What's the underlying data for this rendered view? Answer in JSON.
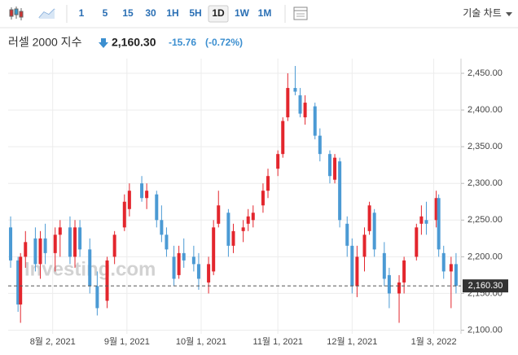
{
  "toolbar": {
    "intervals": [
      "1",
      "5",
      "15",
      "30",
      "1H",
      "5H",
      "1D",
      "1W",
      "1M"
    ],
    "active_interval": 6,
    "menu": "기술 차트"
  },
  "header": {
    "name": "러셀 2000 지수",
    "price": {
      "value": 2160.3,
      "label": "2,160.30"
    },
    "change": -15.76,
    "change_pct": {
      "value": -0.72,
      "label": "(-0.72%)"
    }
  },
  "chart_data": {
    "type": "candlestick",
    "watermark": "Investing.com",
    "up_color": "#e3262d",
    "down_color": "#4b9ad4",
    "grid": true,
    "last_price": {
      "value": 2160.3,
      "label": "2,160.30"
    },
    "xlim": [
      "2021-07-15",
      "2022-01-14"
    ],
    "xticks": [
      {
        "value": "2021-08-02",
        "label": "8월 2, 2021"
      },
      {
        "value": "2021-09-01",
        "label": "9월 1, 2021"
      },
      {
        "value": "2021-10-01",
        "label": "10월 1, 2021"
      },
      {
        "value": "2021-11-01",
        "label": "11월 1, 2021"
      },
      {
        "value": "2021-12-01",
        "label": "12월 1, 2021"
      },
      {
        "value": "2022-01-03",
        "label": "1월 3, 2022"
      }
    ],
    "ylim": [
      2095,
      2470
    ],
    "yticks": [
      {
        "value": 2100,
        "label": "2,100.00"
      },
      {
        "value": 2150,
        "label": "2,150.00"
      },
      {
        "value": 2200,
        "label": "2,200.00"
      },
      {
        "value": 2250,
        "label": "2,250.00"
      },
      {
        "value": 2300,
        "label": "2,300.00"
      },
      {
        "value": 2350,
        "label": "2,350.00"
      },
      {
        "value": 2400,
        "label": "2,400.00"
      },
      {
        "value": 2450,
        "label": "2,450.00"
      }
    ],
    "x": [
      "2021-07-16",
      "2021-07-19",
      "2021-07-20",
      "2021-07-22",
      "2021-07-26",
      "2021-07-28",
      "2021-07-30",
      "2021-08-03",
      "2021-08-05",
      "2021-08-09",
      "2021-08-11",
      "2021-08-13",
      "2021-08-17",
      "2021-08-20",
      "2021-08-24",
      "2021-08-27",
      "2021-08-31",
      "2021-09-02",
      "2021-09-07",
      "2021-09-09",
      "2021-09-13",
      "2021-09-15",
      "2021-09-17",
      "2021-09-20",
      "2021-09-22",
      "2021-09-24",
      "2021-09-28",
      "2021-09-30",
      "2021-10-04",
      "2021-10-06",
      "2021-10-08",
      "2021-10-12",
      "2021-10-14",
      "2021-10-18",
      "2021-10-20",
      "2021-10-22",
      "2021-10-26",
      "2021-10-28",
      "2021-11-01",
      "2021-11-03",
      "2021-11-05",
      "2021-11-08",
      "2021-11-10",
      "2021-11-12",
      "2021-11-16",
      "2021-11-18",
      "2021-11-22",
      "2021-11-24",
      "2021-11-26",
      "2021-11-29",
      "2021-12-01",
      "2021-12-03",
      "2021-12-06",
      "2021-12-08",
      "2021-12-10",
      "2021-12-14",
      "2021-12-16",
      "2021-12-20",
      "2021-12-22",
      "2021-12-27",
      "2021-12-29",
      "2021-12-31",
      "2022-01-04",
      "2022-01-05",
      "2022-01-07",
      "2022-01-10",
      "2022-01-12"
    ],
    "open": [
      2240,
      2195,
      2135,
      2200,
      2225,
      2190,
      2225,
      2205,
      2230,
      2240,
      2200,
      2240,
      2210,
      2160,
      2140,
      2200,
      2240,
      2265,
      2300,
      2280,
      2285,
      2250,
      2230,
      2200,
      2175,
      2205,
      2200,
      2190,
      2165,
      2180,
      2245,
      2260,
      2215,
      2235,
      2245,
      2250,
      2270,
      2290,
      2320,
      2340,
      2390,
      2430,
      2420,
      2390,
      2405,
      2365,
      2340,
      2305,
      2330,
      2245,
      2215,
      2160,
      2200,
      2235,
      2260,
      2205,
      2175,
      2150,
      2165,
      2200,
      2245,
      2250,
      2250,
      2280,
      2205,
      2180,
      2190
    ],
    "high": [
      2255,
      2200,
      2205,
      2235,
      2240,
      2235,
      2245,
      2240,
      2250,
      2255,
      2250,
      2250,
      2225,
      2180,
      2200,
      2235,
      2285,
      2300,
      2310,
      2300,
      2290,
      2270,
      2240,
      2215,
      2215,
      2225,
      2215,
      2205,
      2200,
      2250,
      2290,
      2265,
      2245,
      2250,
      2265,
      2270,
      2300,
      2320,
      2345,
      2390,
      2450,
      2460,
      2430,
      2420,
      2410,
      2375,
      2345,
      2340,
      2335,
      2255,
      2225,
      2215,
      2240,
      2275,
      2265,
      2220,
      2185,
      2175,
      2200,
      2245,
      2270,
      2275,
      2290,
      2285,
      2215,
      2200,
      2205
    ],
    "low": [
      2185,
      2125,
      2110,
      2185,
      2180,
      2170,
      2190,
      2180,
      2200,
      2190,
      2185,
      2200,
      2150,
      2120,
      2130,
      2190,
      2235,
      2255,
      2275,
      2265,
      2240,
      2220,
      2200,
      2160,
      2170,
      2185,
      2180,
      2155,
      2150,
      2175,
      2240,
      2200,
      2205,
      2220,
      2235,
      2240,
      2260,
      2280,
      2310,
      2335,
      2385,
      2420,
      2390,
      2380,
      2360,
      2330,
      2300,
      2300,
      2240,
      2200,
      2150,
      2145,
      2180,
      2230,
      2200,
      2160,
      2130,
      2110,
      2150,
      2195,
      2230,
      2230,
      2240,
      2200,
      2170,
      2130,
      2150
    ],
    "close": [
      2195,
      2135,
      2200,
      2220,
      2190,
      2225,
      2205,
      2230,
      2240,
      2200,
      2240,
      2210,
      2160,
      2130,
      2195,
      2230,
      2275,
      2290,
      2280,
      2290,
      2250,
      2230,
      2210,
      2170,
      2205,
      2195,
      2190,
      2170,
      2190,
      2240,
      2270,
      2215,
      2235,
      2240,
      2255,
      2260,
      2290,
      2310,
      2340,
      2385,
      2430,
      2425,
      2395,
      2410,
      2365,
      2340,
      2310,
      2335,
      2250,
      2215,
      2160,
      2200,
      2230,
      2270,
      2210,
      2170,
      2150,
      2165,
      2195,
      2240,
      2255,
      2245,
      2280,
      2210,
      2180,
      2190,
      2160.3
    ]
  }
}
